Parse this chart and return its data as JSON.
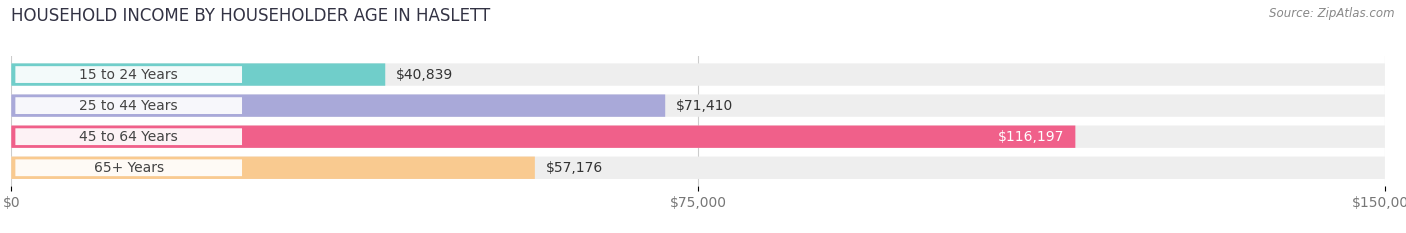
{
  "title": "HOUSEHOLD INCOME BY HOUSEHOLDER AGE IN HASLETT",
  "source": "Source: ZipAtlas.com",
  "categories": [
    "15 to 24 Years",
    "25 to 44 Years",
    "45 to 64 Years",
    "65+ Years"
  ],
  "values": [
    40839,
    71410,
    116197,
    57176
  ],
  "bar_colors": [
    "#70ceca",
    "#a9a9d9",
    "#f0608a",
    "#f9ca90"
  ],
  "bar_bg_color": "#eeeeee",
  "value_labels": [
    "$40,839",
    "$71,410",
    "$116,197",
    "$57,176"
  ],
  "value_label_colors": [
    "#333333",
    "#333333",
    "#ffffff",
    "#333333"
  ],
  "xlim": [
    0,
    150000
  ],
  "xticks": [
    0,
    75000,
    150000
  ],
  "xtick_labels": [
    "$0",
    "$75,000",
    "$150,000"
  ],
  "background_color": "#ffffff",
  "bar_height": 0.72,
  "title_fontsize": 12,
  "label_fontsize": 10,
  "tick_fontsize": 10
}
